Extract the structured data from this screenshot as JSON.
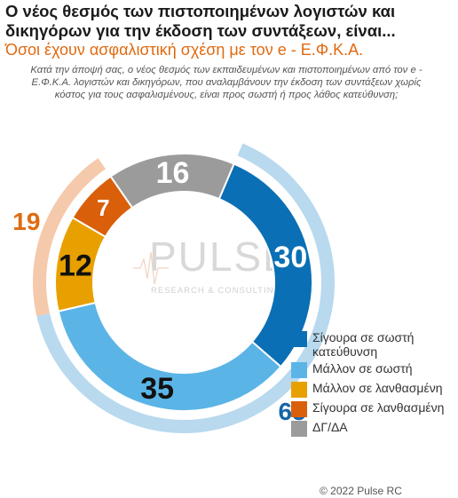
{
  "header": {
    "title": "Ο νέος θεσμός των πιστοποιημένων λογιστών και δικηγόρων για την έκδοση των συντάξεων, είναι...",
    "subtitle": "Όσοι έχουν ασφαλιστική σχέση με τον e - Ε.Φ.Κ.Α.",
    "question": "Κατά την άποψή σας, ο νέος θεσμός των εκπαιδευμένων και πιστοποιημένων από τον e - Ε.Φ.Κ.Α. λογιστών και δικηγόρων, που αναλαμβάνουν την έκδοση των συντάξεων χωρίς κόστος για τους ασφαλισμένους, είναι προς σωστή ή προς λάθος κατεύθυνση;"
  },
  "logo": {
    "text": "PULSE",
    "sub": "RESEARCH & CONSULTING"
  },
  "copyright": "© 2022 Pulse RC",
  "chart_data": {
    "type": "donut",
    "categories": [
      "Σίγουρα σε σωστή κατεύθυνση",
      "Μάλλον σε σωστή",
      "Μάλλον σε λανθασμένη",
      "Σίγουρα σε λανθασμένη",
      "ΔΓ/ΔΑ"
    ],
    "values": [
      30,
      35,
      12,
      7,
      16
    ],
    "colors": [
      "#0a6fb5",
      "#5bb4e6",
      "#e8a000",
      "#d95f0a",
      "#9b9b9b"
    ],
    "groups": [
      {
        "value": 65,
        "members": [
          0,
          1
        ],
        "color": "#b8d9ee",
        "label_color": "#1565a8"
      },
      {
        "value": 19,
        "members": [
          2,
          3
        ],
        "color": "#f5c9ab",
        "label_color": "#e06a10"
      }
    ],
    "legend_position": "bottom-right"
  }
}
